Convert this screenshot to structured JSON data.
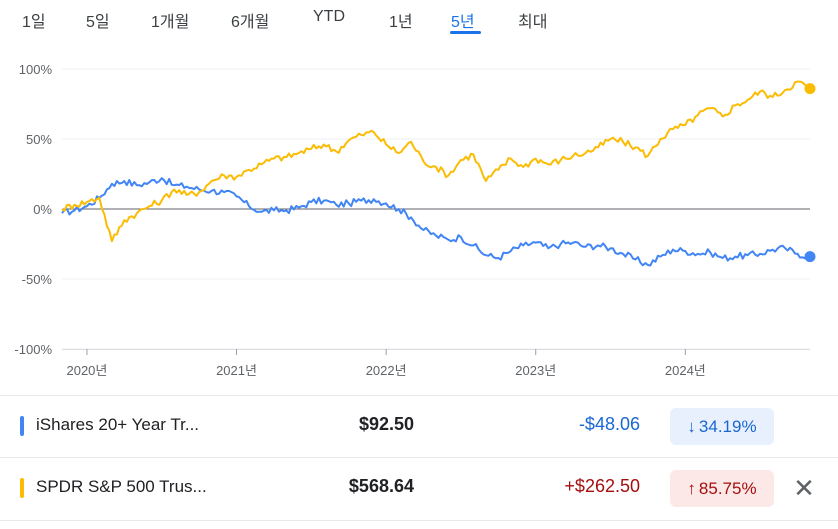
{
  "tabs": [
    {
      "label": "1일"
    },
    {
      "label": "5일"
    },
    {
      "label": "1개월"
    },
    {
      "label": "6개월"
    },
    {
      "label": "YTD"
    },
    {
      "label": "1년"
    },
    {
      "label": "5년"
    },
    {
      "label": "최대"
    }
  ],
  "active_tab": "5년",
  "colors": {
    "blue": "#4285f4",
    "yellow": "#fbbc04",
    "negative": "#1967d2",
    "positive": "#a50e0e"
  },
  "chart_data": {
    "type": "line",
    "ylabels": [
      "100%",
      "50%",
      "0%",
      "-50%",
      "-100%"
    ],
    "ylim": [
      -100,
      100
    ],
    "xlabels": [
      "2020년",
      "2021년",
      "2022년",
      "2023년",
      "2024년"
    ],
    "x_range": [
      "2019-11",
      "2024-11"
    ],
    "series": [
      {
        "name": "iShares 20+ Year Tr...",
        "color": "#4285f4",
        "points": [
          [
            "2019-11",
            -3
          ],
          [
            "2019-12",
            -1
          ],
          [
            "2020-01",
            2
          ],
          [
            "2020-02",
            8
          ],
          [
            "2020-03",
            18
          ],
          [
            "2020-04",
            20
          ],
          [
            "2020-05",
            17
          ],
          [
            "2020-06",
            19
          ],
          [
            "2020-07",
            22
          ],
          [
            "2020-08",
            17
          ],
          [
            "2020-09",
            16
          ],
          [
            "2020-10",
            14
          ],
          [
            "2020-11",
            13
          ],
          [
            "2020-12",
            12
          ],
          [
            "2021-01",
            9
          ],
          [
            "2021-02",
            2
          ],
          [
            "2021-03",
            -2
          ],
          [
            "2021-04",
            -1
          ],
          [
            "2021-05",
            -1
          ],
          [
            "2021-06",
            1
          ],
          [
            "2021-07",
            5
          ],
          [
            "2021-08",
            6
          ],
          [
            "2021-09",
            3
          ],
          [
            "2021-10",
            4
          ],
          [
            "2021-11",
            6
          ],
          [
            "2021-12",
            7
          ],
          [
            "2022-01",
            4
          ],
          [
            "2022-02",
            0
          ],
          [
            "2022-03",
            -6
          ],
          [
            "2022-04",
            -15
          ],
          [
            "2022-05",
            -19
          ],
          [
            "2022-06",
            -22
          ],
          [
            "2022-07",
            -20
          ],
          [
            "2022-08",
            -26
          ],
          [
            "2022-09",
            -33
          ],
          [
            "2022-10",
            -35
          ],
          [
            "2022-11",
            -30
          ],
          [
            "2022-12",
            -26
          ],
          [
            "2023-01",
            -24
          ],
          [
            "2023-02",
            -28
          ],
          [
            "2023-03",
            -25
          ],
          [
            "2023-04",
            -24
          ],
          [
            "2023-05",
            -27
          ],
          [
            "2023-06",
            -26
          ],
          [
            "2023-07",
            -28
          ],
          [
            "2023-08",
            -32
          ],
          [
            "2023-09",
            -36
          ],
          [
            "2023-10",
            -40
          ],
          [
            "2023-11",
            -34
          ],
          [
            "2023-12",
            -29
          ],
          [
            "2024-01",
            -30
          ],
          [
            "2024-02",
            -32
          ],
          [
            "2024-03",
            -31
          ],
          [
            "2024-04",
            -35
          ],
          [
            "2024-05",
            -34
          ],
          [
            "2024-06",
            -33
          ],
          [
            "2024-07",
            -32
          ],
          [
            "2024-08",
            -29
          ],
          [
            "2024-09",
            -28
          ],
          [
            "2024-10",
            -32
          ],
          [
            "2024-11",
            -34
          ]
        ]
      },
      {
        "name": "SPDR S&P 500 Trus...",
        "color": "#fbbc04",
        "points": [
          [
            "2019-11",
            0
          ],
          [
            "2019-12",
            3
          ],
          [
            "2020-01",
            5
          ],
          [
            "2020-02",
            8
          ],
          [
            "2020-03",
            -23
          ],
          [
            "2020-04",
            -8
          ],
          [
            "2020-05",
            -3
          ],
          [
            "2020-06",
            2
          ],
          [
            "2020-07",
            6
          ],
          [
            "2020-08",
            14
          ],
          [
            "2020-09",
            10
          ],
          [
            "2020-10",
            12
          ],
          [
            "2020-11",
            20
          ],
          [
            "2020-12",
            24
          ],
          [
            "2021-01",
            23
          ],
          [
            "2021-02",
            28
          ],
          [
            "2021-03",
            32
          ],
          [
            "2021-04",
            36
          ],
          [
            "2021-05",
            37
          ],
          [
            "2021-06",
            40
          ],
          [
            "2021-07",
            43
          ],
          [
            "2021-08",
            46
          ],
          [
            "2021-09",
            41
          ],
          [
            "2021-10",
            49
          ],
          [
            "2021-11",
            53
          ],
          [
            "2021-12",
            55
          ],
          [
            "2022-01",
            46
          ],
          [
            "2022-02",
            40
          ],
          [
            "2022-03",
            48
          ],
          [
            "2022-04",
            34
          ],
          [
            "2022-05",
            30
          ],
          [
            "2022-06",
            24
          ],
          [
            "2022-07",
            35
          ],
          [
            "2022-08",
            39
          ],
          [
            "2022-09",
            20
          ],
          [
            "2022-10",
            28
          ],
          [
            "2022-11",
            36
          ],
          [
            "2022-12",
            30
          ],
          [
            "2023-01",
            36
          ],
          [
            "2023-02",
            32
          ],
          [
            "2023-03",
            35
          ],
          [
            "2023-04",
            38
          ],
          [
            "2023-05",
            40
          ],
          [
            "2023-06",
            44
          ],
          [
            "2023-07",
            50
          ],
          [
            "2023-08",
            48
          ],
          [
            "2023-09",
            44
          ],
          [
            "2023-10",
            38
          ],
          [
            "2023-11",
            50
          ],
          [
            "2023-12",
            57
          ],
          [
            "2024-01",
            60
          ],
          [
            "2024-02",
            67
          ],
          [
            "2024-03",
            72
          ],
          [
            "2024-04",
            66
          ],
          [
            "2024-05",
            74
          ],
          [
            "2024-06",
            78
          ],
          [
            "2024-07",
            84
          ],
          [
            "2024-08",
            80
          ],
          [
            "2024-09",
            85
          ],
          [
            "2024-10",
            91
          ],
          [
            "2024-11",
            86
          ]
        ]
      }
    ]
  },
  "holdings": [
    {
      "name": "iShares 20+ Year Tr...",
      "price": "$92.50",
      "change": "-$48.06",
      "pct": "34.19%",
      "direction": "down",
      "arrow": "↓"
    },
    {
      "name": "SPDR S&P 500 Trus...",
      "price": "$568.64",
      "change": "+$262.50",
      "pct": "85.75%",
      "direction": "up",
      "arrow": "↑"
    }
  ],
  "close_icon": "close-icon"
}
